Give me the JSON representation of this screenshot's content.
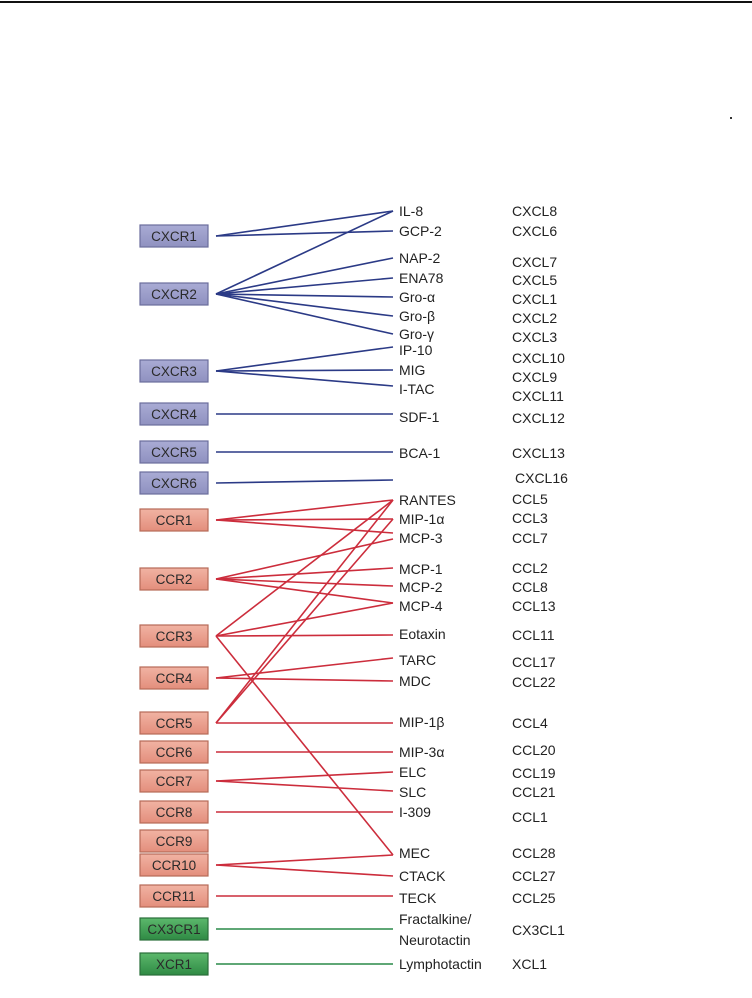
{
  "colors": {
    "cxc": "#2b3a86",
    "cc": "#cc2d3c",
    "cx3c": "#2a8a48",
    "cxc_box": "#9c9ecb",
    "cc_box": "#eba393",
    "green_box": "#3c9a52"
  },
  "receptors": [
    {
      "id": "CXCR1",
      "label": "CXCR1",
      "family": "cxc"
    },
    {
      "id": "CXCR2",
      "label": "CXCR2",
      "family": "cxc"
    },
    {
      "id": "CXCR3",
      "label": "CXCR3",
      "family": "cxc"
    },
    {
      "id": "CXCR4",
      "label": "CXCR4",
      "family": "cxc"
    },
    {
      "id": "CXCR5",
      "label": "CXCR5",
      "family": "cxc"
    },
    {
      "id": "CXCR6",
      "label": "CXCR6",
      "family": "cxc"
    },
    {
      "id": "CCR1",
      "label": "CCR1",
      "family": "cc"
    },
    {
      "id": "CCR2",
      "label": "CCR2",
      "family": "cc"
    },
    {
      "id": "CCR3",
      "label": "CCR3",
      "family": "cc"
    },
    {
      "id": "CCR4",
      "label": "CCR4",
      "family": "cc"
    },
    {
      "id": "CCR5",
      "label": "CCR5",
      "family": "cc"
    },
    {
      "id": "CCR6",
      "label": "CCR6",
      "family": "cc"
    },
    {
      "id": "CCR7",
      "label": "CCR7",
      "family": "cc"
    },
    {
      "id": "CCR8",
      "label": "CCR8",
      "family": "cc"
    },
    {
      "id": "CCR9",
      "label": "CCR9",
      "family": "cc"
    },
    {
      "id": "CCR10",
      "label": "CCR10",
      "family": "cc"
    },
    {
      "id": "CCR11",
      "label": "CCR11",
      "family": "cc"
    },
    {
      "id": "CX3CR1",
      "label": "CX3CR1",
      "family": "cx3c"
    },
    {
      "id": "XCR1",
      "label": "XCR1",
      "family": "xc"
    }
  ],
  "ligands": [
    {
      "id": "IL-8",
      "label": "IL-8"
    },
    {
      "id": "GCP-2",
      "label": "GCP-2"
    },
    {
      "id": "NAP-2",
      "label": "NAP-2"
    },
    {
      "id": "ENA78",
      "label": "ENA78"
    },
    {
      "id": "Gro-a",
      "label": "Gro-α"
    },
    {
      "id": "Gro-b",
      "label": "Gro-β"
    },
    {
      "id": "Gro-g",
      "label": "Gro-γ"
    },
    {
      "id": "IP-10",
      "label": "IP-10"
    },
    {
      "id": "MIG",
      "label": "MIG"
    },
    {
      "id": "I-TAC",
      "label": "I-TAC"
    },
    {
      "id": "SDF-1",
      "label": "SDF-1"
    },
    {
      "id": "BCA-1",
      "label": "BCA-1"
    },
    {
      "id": "RANTES",
      "label": "RANTES"
    },
    {
      "id": "MIP-1a",
      "label": "MIP-1α"
    },
    {
      "id": "MCP-3",
      "label": "MCP-3"
    },
    {
      "id": "MCP-1",
      "label": "MCP-1"
    },
    {
      "id": "MCP-2",
      "label": "MCP-2"
    },
    {
      "id": "MCP-4",
      "label": "MCP-4"
    },
    {
      "id": "Eotaxin",
      "label": "Eotaxin"
    },
    {
      "id": "TARC",
      "label": "TARC"
    },
    {
      "id": "MDC",
      "label": "MDC"
    },
    {
      "id": "MIP-1b",
      "label": "MIP-1β"
    },
    {
      "id": "MIP-3a",
      "label": "MIP-3α"
    },
    {
      "id": "ELC",
      "label": "ELC"
    },
    {
      "id": "SLC",
      "label": "SLC"
    },
    {
      "id": "I-309",
      "label": "I-309"
    },
    {
      "id": "MEC",
      "label": "MEC"
    },
    {
      "id": "CTACK",
      "label": "CTACK"
    },
    {
      "id": "TECK",
      "label": "TECK"
    },
    {
      "id": "Fractalkine",
      "label": "Fractalkine/"
    },
    {
      "id": "Neurotactin",
      "label": "Neurotactin"
    },
    {
      "id": "Lymphotactin",
      "label": "Lymphotactin"
    }
  ],
  "systematic_names": [
    "CXCL8",
    "CXCL6",
    "CXCL7",
    "CXCL5",
    "CXCL1",
    "CXCL2",
    "CXCL3",
    "CXCL10",
    "CXCL9",
    "CXCL11",
    "CXCL12",
    "CXCL13",
    "CXCL16",
    "CCL5",
    "CCL3",
    "CCL7",
    "CCL2",
    "CCL8",
    "CCL13",
    "CCL11",
    "CCL17",
    "CCL22",
    "CCL4",
    "CCL20",
    "CCL19",
    "CCL21",
    "CCL1",
    "CCL28",
    "CCL27",
    "CCL25",
    "CX3CL1",
    "XCL1"
  ],
  "edges": [
    [
      "CXCR1",
      "IL-8"
    ],
    [
      "CXCR1",
      "GCP-2"
    ],
    [
      "CXCR2",
      "IL-8"
    ],
    [
      "CXCR2",
      "NAP-2"
    ],
    [
      "CXCR2",
      "ENA78"
    ],
    [
      "CXCR2",
      "Gro-a"
    ],
    [
      "CXCR2",
      "Gro-b"
    ],
    [
      "CXCR2",
      "Gro-g"
    ],
    [
      "CXCR3",
      "IP-10"
    ],
    [
      "CXCR3",
      "MIG"
    ],
    [
      "CXCR3",
      "I-TAC"
    ],
    [
      "CXCR4",
      "SDF-1"
    ],
    [
      "CXCR5",
      "BCA-1"
    ],
    [
      "CXCR6",
      "CXCL16"
    ],
    [
      "CCR1",
      "RANTES"
    ],
    [
      "CCR1",
      "MIP-1a"
    ],
    [
      "CCR1",
      "MCP-3"
    ],
    [
      "CCR2",
      "MCP-3"
    ],
    [
      "CCR2",
      "MCP-1"
    ],
    [
      "CCR2",
      "MCP-2"
    ],
    [
      "CCR2",
      "MCP-4"
    ],
    [
      "CCR3",
      "RANTES"
    ],
    [
      "CCR3",
      "MCP-4"
    ],
    [
      "CCR3",
      "Eotaxin"
    ],
    [
      "CCR3",
      "MEC"
    ],
    [
      "CCR4",
      "TARC"
    ],
    [
      "CCR4",
      "MDC"
    ],
    [
      "CCR5",
      "RANTES"
    ],
    [
      "CCR5",
      "MIP-1a"
    ],
    [
      "CCR5",
      "MIP-1b"
    ],
    [
      "CCR6",
      "MIP-3a"
    ],
    [
      "CCR7",
      "ELC"
    ],
    [
      "CCR7",
      "SLC"
    ],
    [
      "CCR8",
      "I-309"
    ],
    [
      "CCR10",
      "MEC"
    ],
    [
      "CCR10",
      "CTACK"
    ],
    [
      "CCR11",
      "TECK"
    ],
    [
      "CX3CR1",
      "Fractalkine"
    ],
    [
      "XCR1",
      "Lymphotactin"
    ]
  ]
}
